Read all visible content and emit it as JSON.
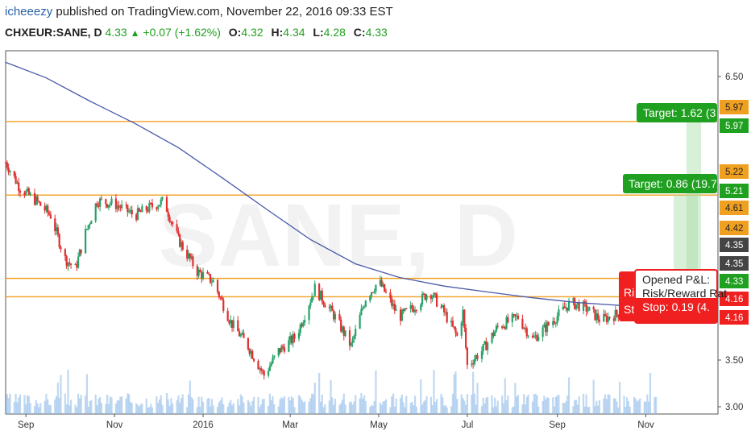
{
  "header": {
    "user": "icheeezy",
    "published_text": "published on TradingView.com, November 22, 2016 09:33 EST",
    "symbol": "CHXEUR:SANE, D",
    "last": "4.33",
    "change": "+0.07 (+1.62%)",
    "open_label": "O:",
    "open": "4.32",
    "high_label": "H:",
    "high": "4.34",
    "low_label": "L:",
    "low": "4.28",
    "close_label": "C:",
    "close": "4.33"
  },
  "watermark": "SANE, D",
  "colors": {
    "up": "#26a269",
    "down": "#e03030",
    "ma": "#4a5aa8",
    "hline": "#f0a020",
    "target": "#20a020",
    "stop": "#f02020",
    "volume": "#8ab8e8",
    "frame": "#555555"
  },
  "chart_data": {
    "type": "candlestick",
    "ylim": [
      2.95,
      6.7
    ],
    "y_ticks": [
      3.0,
      3.5,
      6.5
    ],
    "x_range": [
      "2015-08-18",
      "2016-12-09"
    ],
    "x_ticks": [
      {
        "label": "Sep",
        "date": "2015-09-01"
      },
      {
        "label": "Nov",
        "date": "2015-11-01"
      },
      {
        "label": "2016",
        "date": "2016-01-01"
      },
      {
        "label": "Mar",
        "date": "2016-03-01"
      },
      {
        "label": "May",
        "date": "2016-05-01"
      },
      {
        "label": "Jul",
        "date": "2016-07-01"
      },
      {
        "label": "Sep",
        "date": "2016-09-01"
      },
      {
        "label": "Nov",
        "date": "2016-11-01"
      }
    ],
    "horizontal_lines": [
      5.97,
      5.21,
      4.35,
      4.16
    ],
    "price_labels": [
      {
        "value": "6.50",
        "kind": "tick"
      },
      {
        "value": "5.97",
        "kind": "orange"
      },
      {
        "value": "5.97",
        "kind": "green"
      },
      {
        "value": "5.22",
        "kind": "orange"
      },
      {
        "value": "5.21",
        "kind": "green"
      },
      {
        "value": "4.61",
        "kind": "orange"
      },
      {
        "value": "4.42",
        "kind": "orange"
      },
      {
        "value": "4.35",
        "kind": "dark"
      },
      {
        "value": "4.35",
        "kind": "dark"
      },
      {
        "value": "4.33",
        "kind": "green"
      },
      {
        "value": "4.16",
        "kind": "red"
      },
      {
        "value": "4.16",
        "kind": "red"
      },
      {
        "value": "3.50",
        "kind": "tick"
      },
      {
        "value": "3.00",
        "kind": "tick"
      }
    ],
    "moving_average": [
      [
        "2015-08-18",
        6.58
      ],
      [
        "2015-09-15",
        6.42
      ],
      [
        "2015-10-15",
        6.18
      ],
      [
        "2015-11-15",
        5.95
      ],
      [
        "2015-12-15",
        5.7
      ],
      [
        "2016-01-15",
        5.38
      ],
      [
        "2016-02-15",
        5.05
      ],
      [
        "2016-03-15",
        4.75
      ],
      [
        "2016-04-15",
        4.5
      ],
      [
        "2016-05-15",
        4.36
      ],
      [
        "2016-06-15",
        4.27
      ],
      [
        "2016-07-15",
        4.21
      ],
      [
        "2016-08-15",
        4.15
      ],
      [
        "2016-09-15",
        4.1
      ],
      [
        "2016-10-15",
        4.07
      ],
      [
        "2016-10-22",
        4.06
      ]
    ],
    "price_path": [
      [
        "2015-08-18",
        5.55
      ],
      [
        "2015-08-28",
        5.28
      ],
      [
        "2015-09-08",
        5.15
      ],
      [
        "2015-09-18",
        5.0
      ],
      [
        "2015-09-28",
        4.55
      ],
      [
        "2015-10-05",
        4.45
      ],
      [
        "2015-10-12",
        4.82
      ],
      [
        "2015-10-20",
        5.15
      ],
      [
        "2015-11-01",
        5.12
      ],
      [
        "2015-11-15",
        5.0
      ],
      [
        "2015-11-25",
        5.08
      ],
      [
        "2015-12-05",
        5.15
      ],
      [
        "2015-12-15",
        4.75
      ],
      [
        "2015-12-28",
        4.42
      ],
      [
        "2016-01-08",
        4.32
      ],
      [
        "2016-01-20",
        3.9
      ],
      [
        "2016-02-01",
        3.65
      ],
      [
        "2016-02-12",
        3.35
      ],
      [
        "2016-02-22",
        3.6
      ],
      [
        "2016-03-05",
        3.75
      ],
      [
        "2016-03-18",
        4.25
      ],
      [
        "2016-04-01",
        3.95
      ],
      [
        "2016-04-12",
        3.65
      ],
      [
        "2016-04-22",
        4.15
      ],
      [
        "2016-05-01",
        4.32
      ],
      [
        "2016-05-15",
        3.95
      ],
      [
        "2016-05-25",
        4.05
      ],
      [
        "2016-06-05",
        4.22
      ],
      [
        "2016-06-15",
        4.0
      ],
      [
        "2016-06-24",
        3.75
      ],
      [
        "2016-06-28",
        4.0
      ],
      [
        "2016-07-01",
        3.45
      ],
      [
        "2016-07-12",
        3.62
      ],
      [
        "2016-07-22",
        3.85
      ],
      [
        "2016-08-05",
        3.95
      ],
      [
        "2016-08-15",
        3.72
      ],
      [
        "2016-08-28",
        3.9
      ],
      [
        "2016-09-10",
        4.1
      ],
      [
        "2016-09-20",
        4.05
      ],
      [
        "2016-10-01",
        3.92
      ],
      [
        "2016-10-12",
        3.98
      ],
      [
        "2016-10-22",
        4.1
      ],
      [
        "2016-11-01",
        4.3
      ],
      [
        "2016-11-08",
        4.33
      ]
    ],
    "volume_level_hint": "low",
    "annotations": [
      {
        "kind": "target",
        "text": "Target: 1.62 (3"
      },
      {
        "kind": "target",
        "text": "Target: 0.86 (19.7"
      },
      {
        "kind": "opened",
        "lines": [
          "Opened P&L:",
          "Risk/Reward Rat",
          "Stop: 0.19 (4."
        ]
      },
      {
        "kind": "stop-partial",
        "lines": [
          "Ris",
          "St"
        ]
      }
    ]
  }
}
